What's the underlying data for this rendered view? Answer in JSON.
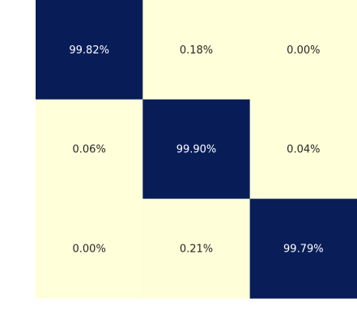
{
  "chart_data": {
    "type": "heatmap",
    "rows": 3,
    "cols": 3,
    "values": [
      [
        99.82,
        0.18,
        0.0
      ],
      [
        0.06,
        99.9,
        0.04
      ],
      [
        0.0,
        0.21,
        99.79
      ]
    ],
    "labels": [
      [
        "99.82%",
        "0.18%",
        "0.00%"
      ],
      [
        "0.06%",
        "99.90%",
        "0.04%"
      ],
      [
        "0.00%",
        "0.21%",
        "99.79%"
      ]
    ],
    "value_unit": "%",
    "vmin": 0,
    "vmax": 100,
    "colormap": "YlGnBu",
    "low_color": "#ffffd9",
    "high_color": "#081d58",
    "text_color_light": "#ffffff",
    "text_color_dark": "#262626",
    "colorbar": false,
    "grid": false
  }
}
